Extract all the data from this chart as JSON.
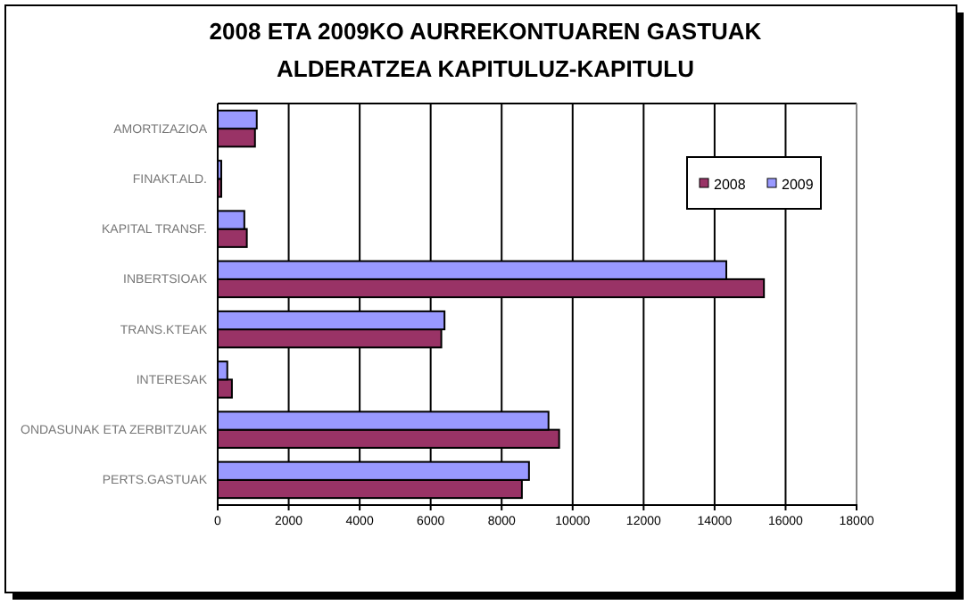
{
  "chart_data": {
    "type": "bar",
    "orientation": "horizontal",
    "title": "2008 ETA 2009KO AURREKONTUAREN GASTUAK\nALDERATZEA KAPITULUZ-KAPITULU",
    "categories": [
      "AMORTIZAZIOA",
      "FINAKT.ALD.",
      "KAPITAL TRANSF.",
      "INBERTSIOAK",
      "TRANS.KTEAK",
      "INTERESAK",
      "ONDASUNAK ETA ZERBITZUAK",
      "PERTS.GASTUAK"
    ],
    "series": [
      {
        "name": "2008",
        "color": "#993366",
        "values": [
          1050,
          100,
          820,
          15390,
          6300,
          400,
          9620,
          8570
        ]
      },
      {
        "name": "2009",
        "color": "#9999ff",
        "values": [
          1100,
          100,
          750,
          14330,
          6390,
          270,
          9320,
          8770
        ]
      }
    ],
    "xlim": [
      0,
      18000
    ],
    "xticks": [
      0,
      2000,
      4000,
      6000,
      8000,
      10000,
      12000,
      14000,
      16000,
      18000
    ],
    "grid": "x",
    "legend": "top right"
  }
}
